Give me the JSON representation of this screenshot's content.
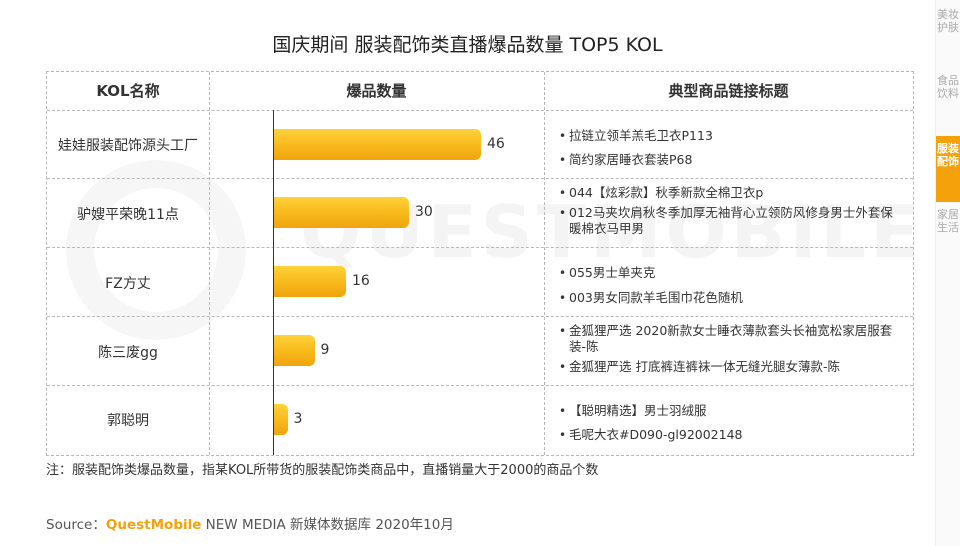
{
  "title": "国庆期间 服装配饰类直播爆品数量 TOP5 KOL",
  "headers": {
    "kol": "KOL名称",
    "count": "爆品数量",
    "products": "典型商品链接标题"
  },
  "chart_data": {
    "type": "bar",
    "orientation": "horizontal",
    "categories": [
      "娃娃服装配饰源头工厂",
      "驴嫂平荣晚11点",
      "FZ方丈",
      "陈三废gg",
      "郭聪明"
    ],
    "values": [
      46,
      30,
      16,
      9,
      3
    ],
    "xlim": [
      0,
      46
    ],
    "color": "#f7b81a"
  },
  "rows": [
    {
      "kol": "娃娃服装配饰源头工厂",
      "value": "46",
      "products": [
        "拉链立领羊羔毛卫衣P113",
        "简约家居睡衣套装P68"
      ]
    },
    {
      "kol": "驴嫂平荣晚11点",
      "value": "30",
      "products": [
        "044【炫彩款】秋季新款全棉卫衣p",
        "012马夹坎肩秋冬季加厚无袖背心立领防风修身男士外套保暖棉衣马甲男"
      ]
    },
    {
      "kol": "FZ方丈",
      "value": "16",
      "products": [
        "055男士单夹克",
        "003男女同款羊毛围巾花色随机"
      ]
    },
    {
      "kol": "陈三废gg",
      "value": "9",
      "products": [
        "金狐狸严选 2020新款女士睡衣薄款套头长袖宽松家居服套装-陈",
        "金狐狸严选 打底裤连裤袜一体无缝光腿女薄款-陈"
      ]
    },
    {
      "kol": "郭聪明",
      "value": "3",
      "products": [
        "【聪明精选】男士羽绒服",
        "毛呢大衣#D090-gl92002148"
      ]
    }
  ],
  "note": "注：服装配饰类爆品数量，指某KOL所带货的服装配饰类商品中，直播销量大于2000的商品个数",
  "source": {
    "prefix": "Source：",
    "brand": "QuestMobile",
    "rest": " NEW MEDIA 新媒体数据库 2020年10月"
  },
  "watermark": "QUESTMOBILE",
  "sidebar": [
    {
      "label": "美妆护肤",
      "active": false
    },
    {
      "label": "食品饮料",
      "active": false
    },
    {
      "label": "服装配饰",
      "active": true
    },
    {
      "label": "家居生活",
      "active": false
    }
  ],
  "bullet": "•"
}
